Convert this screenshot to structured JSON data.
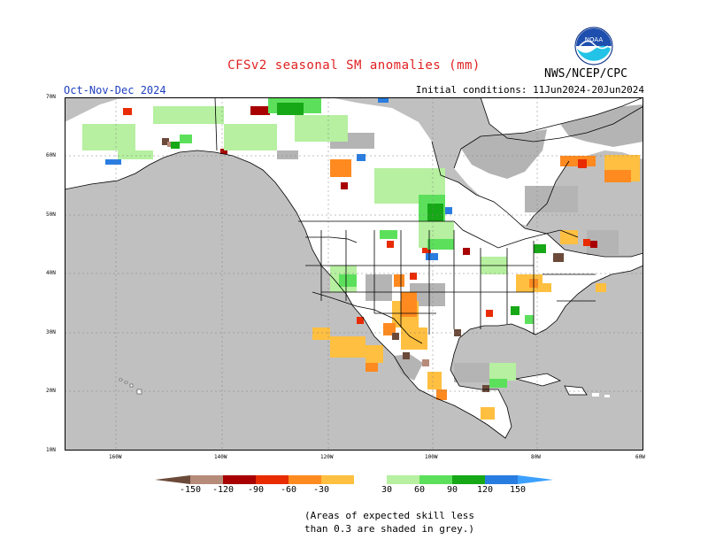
{
  "header": {
    "title": "CFSv2 seasonal SM anomalies (mm)",
    "season": "Oct-Nov-Dec 2024",
    "initial_conditions": "Initial conditions: 11Jun2024-20Jun2024",
    "agency": "NWS/NCEP/CPC",
    "logo_text": "NOAA"
  },
  "map": {
    "lat_labels": [
      "70N",
      "60N",
      "50N",
      "40N",
      "30N",
      "20N",
      "10N"
    ],
    "lon_labels": [
      "160W",
      "140W",
      "120W",
      "100W",
      "80W",
      "60W"
    ],
    "colors": {
      "ocean": "#c0c0c0",
      "land": "#ffffff",
      "skill_grey": "#b4b4b4",
      "border": "#000000"
    }
  },
  "legend": {
    "labels": [
      "-150",
      "-120",
      "-90",
      "-60",
      "-30",
      "30",
      "60",
      "90",
      "120",
      "150"
    ],
    "colors": [
      "#6b4a3a",
      "#b78b7a",
      "#a80000",
      "#e82b00",
      "#ff8a20",
      "#ffbf40",
      "#ffffff",
      "#b6f0a0",
      "#5ce05c",
      "#16a816",
      "#2a7de0",
      "#3ca0ff"
    ]
  },
  "note": {
    "line1": "(Areas of expected skill less",
    "line2": "than 0.3 are shaded in grey.)"
  }
}
